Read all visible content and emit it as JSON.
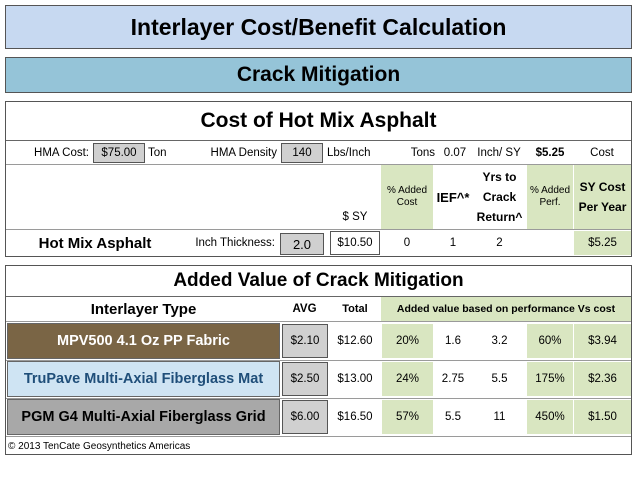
{
  "title": "Interlayer Cost/Benefit Calculation",
  "subtitle": "Crack Mitigation",
  "hma_section": {
    "title": "Cost of Hot Mix Asphalt",
    "hma_cost_label": "HMA Cost:",
    "hma_cost_value": "$75.00",
    "hma_cost_unit": "Ton",
    "density_label": "HMA Density",
    "density_value": "140",
    "density_unit": "Lbs/Inch",
    "tons_label": "Tons",
    "tons_value": "0.07",
    "tons_unit": "Inch/ SY",
    "price_value": "$5.25",
    "cost_label": "Cost",
    "col_sy": "$ SY",
    "col_added_cost": "% Added Cost",
    "col_ief": "IEF^*",
    "col_yrs": "Yrs to Crack Return^",
    "col_added_perf": "% Added Perf.",
    "col_sy_cost": "SY Cost Per Year",
    "row_label": "Hot Mix Asphalt",
    "thickness_label": "Inch Thickness:",
    "thickness_value": "2.0",
    "row_sy": "$10.50",
    "row_added_cost": "0",
    "row_ief": "1",
    "row_yrs": "2",
    "row_added_perf": "",
    "row_sy_cost": "$5.25"
  },
  "mitigation": {
    "title": "Added Value of Crack Mitigation",
    "col_type": "Interlayer Type",
    "col_avg": "AVG",
    "col_total": "Total",
    "col_note": "Added value based on performance Vs cost",
    "rows": [
      {
        "name": "MPV500 4.1 Oz PP Fabric",
        "avg": "$2.10",
        "total": "$12.60",
        "added_cost": "20%",
        "ief": "1.6",
        "yrs": "3.2",
        "added_perf": "60%",
        "sy_cost": "$3.94"
      },
      {
        "name": "TruPave Multi-Axial Fiberglass Mat",
        "avg": "$2.50",
        "total": "$13.00",
        "added_cost": "24%",
        "ief": "2.75",
        "yrs": "5.5",
        "added_perf": "175%",
        "sy_cost": "$2.36"
      },
      {
        "name": "PGM G4 Multi-Axial Fiberglass Grid",
        "avg": "$6.00",
        "total": "$16.50",
        "added_cost": "57%",
        "ief": "5.5",
        "yrs": "11",
        "added_perf": "450%",
        "sy_cost": "$1.50"
      }
    ]
  },
  "footer": "© 2013 TenCate Geosynthetics Americas",
  "colors": {
    "title_bg": "#c7d9f1",
    "subtitle_bg": "#95c4d8",
    "gray": "#d0d0d0",
    "green": "#d9e6c1",
    "row1_bg": "#7a6545",
    "row2_bg": "#cfe4f3",
    "row3_bg": "#a8a8a8"
  }
}
